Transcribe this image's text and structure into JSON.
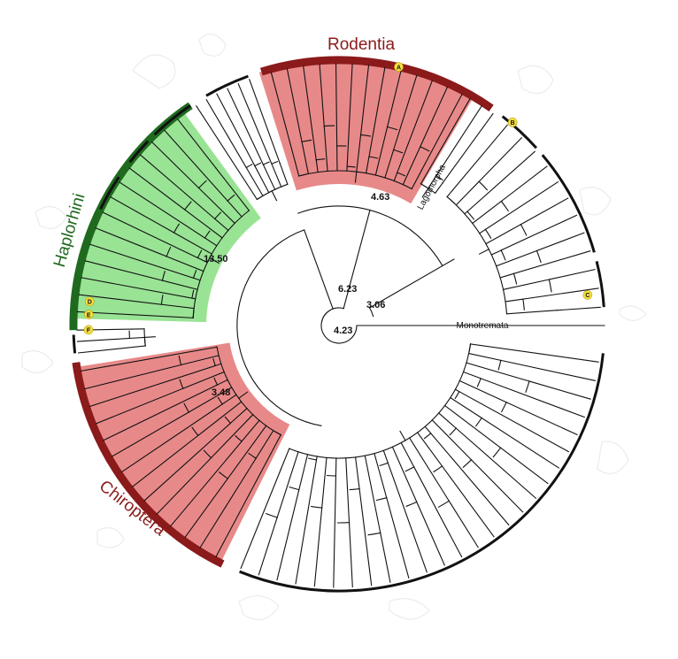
{
  "clades": [
    {
      "key": "rodentia",
      "label": "Rodentia",
      "color": "#8b1a1a",
      "highlight": "#e57c7c"
    },
    {
      "key": "haplorhini",
      "label": "Haplorhini",
      "color": "#1f6a1f",
      "highlight": "#8ee08a"
    },
    {
      "key": "chiroptera",
      "label": "Chiroptera",
      "color": "#8b1a1a",
      "highlight": "#e57c7c"
    }
  ],
  "branch_labels": {
    "lagomorpha": "Lagomorpha",
    "monotremata": "Monotremata"
  },
  "node_values": [
    "13.50",
    "4.63",
    "6.23",
    "3.06",
    "4.23",
    "3.48"
  ],
  "markers": [
    "A",
    "B",
    "C",
    "D",
    "E",
    "F"
  ],
  "marker_color": "#f5e042"
}
